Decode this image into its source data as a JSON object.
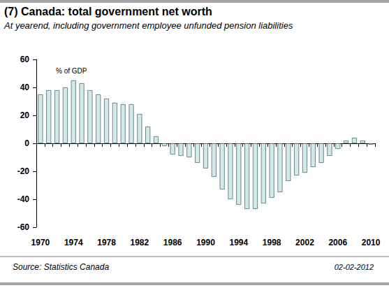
{
  "chart_data": {
    "type": "bar",
    "title": "(7) Canada: total government net worth",
    "subtitle": "At yearend, including government employee unfunded pension liabilities",
    "y_label": "% of GDP",
    "source": "Source: Statistics Canada",
    "date": "02-02-2012",
    "categories": [
      "1970",
      null,
      null,
      null,
      "1974",
      null,
      null,
      null,
      "1978",
      null,
      null,
      null,
      "1982",
      null,
      null,
      null,
      "1986",
      null,
      null,
      null,
      "1990",
      null,
      null,
      null,
      "1994",
      null,
      null,
      null,
      "1998",
      null,
      null,
      null,
      "2002",
      null,
      null,
      null,
      "2006",
      null,
      null,
      null,
      "2010"
    ],
    "values": [
      35,
      38,
      38,
      40,
      45,
      43,
      38,
      35,
      32,
      29,
      28,
      28,
      21,
      12,
      5,
      -2,
      -8,
      -9,
      -10,
      -14,
      -18,
      -24,
      -33,
      -40,
      -44,
      -47,
      -47,
      -43,
      -39,
      -35,
      -27,
      -23,
      -21,
      -17,
      -14,
      -9,
      -4,
      2,
      4,
      2,
      -1
    ],
    "color": "#d3e9e9",
    "ylim": [
      -60,
      60
    ],
    "yticks": [
      -60,
      -40,
      -20,
      0,
      20,
      40,
      60
    ],
    "grid": false
  }
}
